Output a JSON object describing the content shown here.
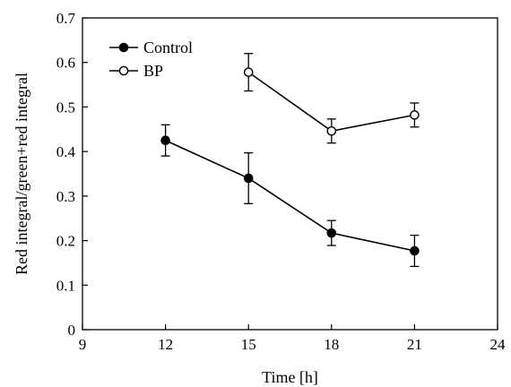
{
  "chart_data": {
    "type": "line",
    "xlabel": "Time [h]",
    "ylabel": "Red integral/green+red integral",
    "xlim": [
      9,
      24
    ],
    "ylim": [
      0,
      0.7
    ],
    "x_ticks": [
      "9",
      "12",
      "15",
      "18",
      "21",
      "24"
    ],
    "y_ticks": [
      "0",
      "0.1",
      "0.2",
      "0.3",
      "0.4",
      "0.5",
      "0.6",
      "0.7"
    ],
    "grid": false,
    "legend_position": "top-left",
    "series": [
      {
        "name": "Control",
        "marker": "filled-circle",
        "color": "#000000",
        "x": [
          12,
          15,
          18,
          21
        ],
        "y": [
          0.425,
          0.34,
          0.217,
          0.177
        ],
        "error": [
          0.035,
          0.057,
          0.028,
          0.035
        ]
      },
      {
        "name": "BP",
        "marker": "open-circle",
        "color": "#000000",
        "x": [
          15,
          18,
          21
        ],
        "y": [
          0.578,
          0.446,
          0.482
        ],
        "error": [
          0.042,
          0.027,
          0.027
        ]
      }
    ]
  }
}
